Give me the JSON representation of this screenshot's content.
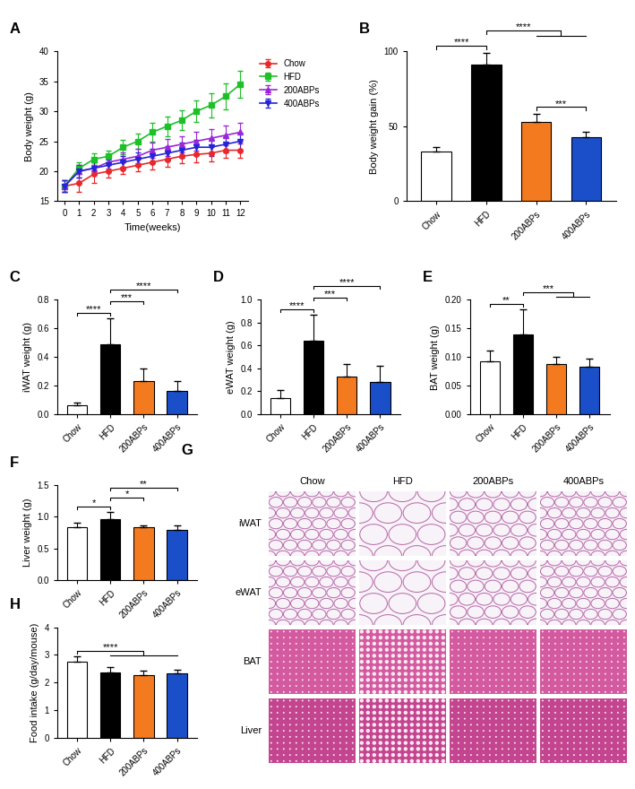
{
  "chart_data": [
    {
      "type": "line",
      "panel": "A",
      "x_label": "Time(weeks)",
      "y_label": "Body weight (g)",
      "x": [
        0,
        1,
        2,
        3,
        4,
        5,
        6,
        7,
        8,
        9,
        10,
        11,
        12
      ],
      "xlim": [
        -0.5,
        12.5
      ],
      "xticks": [
        0,
        1,
        2,
        3,
        4,
        5,
        6,
        7,
        8,
        9,
        10,
        11,
        12
      ],
      "ylim": [
        15,
        40
      ],
      "yticks": [
        15,
        20,
        25,
        30,
        35,
        40
      ],
      "legend": "upper left",
      "series": [
        {
          "name": "Chow",
          "color": "#e8282a",
          "marker": "circle",
          "values": [
            17.5,
            18,
            19.5,
            20,
            20.5,
            21,
            21.5,
            22,
            22.5,
            22.8,
            23,
            23.5,
            23.5
          ],
          "errors": [
            1,
            1.5,
            1.5,
            1,
            1,
            1,
            1.2,
            1.2,
            1.2,
            1.3,
            1.3,
            1.2,
            1.2
          ]
        },
        {
          "name": "HFD",
          "color": "#1fbf2a",
          "marker": "square",
          "values": [
            17.5,
            20.5,
            22,
            22.5,
            24,
            25,
            26.5,
            27.5,
            28.5,
            30,
            31,
            32.5,
            34.5
          ],
          "errors": [
            1,
            1,
            1,
            1,
            1.2,
            1.3,
            1.5,
            1.6,
            1.7,
            1.8,
            2,
            2.2,
            2.3
          ]
        },
        {
          "name": "200ABPs",
          "color": "#9b27d8",
          "marker": "triangle_up",
          "values": [
            17.5,
            20,
            20.5,
            21.5,
            22,
            22.5,
            23.5,
            24,
            24.5,
            25,
            25.5,
            26,
            26.5
          ],
          "errors": [
            1,
            1,
            1,
            1,
            1.2,
            1.2,
            1.3,
            1.4,
            1.4,
            1.5,
            1.5,
            1.6,
            1.6
          ]
        },
        {
          "name": "400ABPs",
          "color": "#2424d8",
          "marker": "triangle_down",
          "values": [
            17.5,
            20,
            20.5,
            21,
            21.5,
            22,
            22.5,
            23,
            23.5,
            24,
            24,
            24.5,
            25
          ],
          "errors": [
            1,
            1,
            1,
            1,
            1,
            1.1,
            1.2,
            1.2,
            1.3,
            1.3,
            1.4,
            1.4,
            1.4
          ]
        }
      ]
    },
    {
      "type": "bar",
      "panel": "B",
      "y_label": "Body weight gain (%)",
      "categories": [
        "Chow",
        "HFD",
        "200ABPs",
        "400ABPs"
      ],
      "values": [
        33,
        91,
        53,
        43
      ],
      "errors": [
        3,
        8,
        5,
        3
      ],
      "colors": [
        "#ffffff",
        "#000000",
        "#f47a20",
        "#1a4fc9"
      ],
      "ylim": [
        0,
        100
      ],
      "yticks": [
        0,
        50,
        100
      ],
      "annotations": [
        {
          "from": "200ABPs",
          "to": [
            "400ABPs"
          ],
          "text": "***"
        },
        {
          "from": "Chow",
          "to": [
            "HFD"
          ],
          "text": "****"
        },
        {
          "from": "HFD",
          "to": [
            "200ABPs",
            "400ABPs"
          ],
          "text": "****"
        }
      ]
    },
    {
      "type": "bar",
      "panel": "C",
      "y_label": "iWAT weight (g)",
      "categories": [
        "Chow",
        "HFD",
        "200ABPs",
        "400ABPs"
      ],
      "values": [
        0.06,
        0.49,
        0.23,
        0.16
      ],
      "errors": [
        0.02,
        0.18,
        0.09,
        0.07
      ],
      "colors": [
        "#ffffff",
        "#000000",
        "#f47a20",
        "#1a4fc9"
      ],
      "ylim": [
        0,
        0.8
      ],
      "yticks": [
        {
          "value": 0,
          "label": "0.0"
        },
        0.2,
        0.4,
        0.6,
        0.8
      ],
      "annotations": [
        {
          "from": "Chow",
          "to": [
            "HFD"
          ],
          "text": "****"
        },
        {
          "from": "HFD",
          "to": [
            "200ABPs"
          ],
          "text": "***"
        },
        {
          "from": "HFD",
          "to": [
            "400ABPs"
          ],
          "text": "****"
        }
      ]
    },
    {
      "type": "bar",
      "panel": "D",
      "y_label": "eWAT weight (g)",
      "categories": [
        "Chow",
        "HFD",
        "200ABPs",
        "400ABPs"
      ],
      "values": [
        0.14,
        0.64,
        0.33,
        0.28
      ],
      "errors": [
        0.07,
        0.23,
        0.11,
        0.14
      ],
      "colors": [
        "#ffffff",
        "#000000",
        "#f47a20",
        "#1a4fc9"
      ],
      "ylim": [
        0,
        1.0
      ],
      "yticks": [
        {
          "value": 0,
          "label": "0.0"
        },
        0.2,
        0.4,
        0.6,
        0.8,
        {
          "value": 1,
          "label": "1.0"
        }
      ],
      "annotations": [
        {
          "from": "Chow",
          "to": [
            "HFD"
          ],
          "text": "****"
        },
        {
          "from": "HFD",
          "to": [
            "200ABPs"
          ],
          "text": "***"
        },
        {
          "from": "HFD",
          "to": [
            "400ABPs"
          ],
          "text": "****"
        }
      ]
    },
    {
      "type": "bar",
      "panel": "E",
      "y_label": "BAT weight (g)",
      "categories": [
        "Chow",
        "HFD",
        "200ABPs",
        "400ABPs"
      ],
      "values": [
        0.093,
        0.14,
        0.087,
        0.083
      ],
      "errors": [
        0.018,
        0.043,
        0.013,
        0.014
      ],
      "colors": [
        "#ffffff",
        "#000000",
        "#f47a20",
        "#1a4fc9"
      ],
      "ylim": [
        0,
        0.2
      ],
      "yticks": [
        {
          "value": 0,
          "label": "0.00"
        },
        0.05,
        {
          "value": 0.1,
          "label": "0.10"
        },
        0.15,
        {
          "value": 0.2,
          "label": "0.20"
        }
      ],
      "annotations": [
        {
          "from": "Chow",
          "to": [
            "HFD"
          ],
          "text": "**"
        },
        {
          "from": "HFD",
          "to": [
            "200ABPs",
            "400ABPs"
          ],
          "text": "***"
        }
      ]
    },
    {
      "type": "bar",
      "panel": "F",
      "y_label": "Liver weight (g)",
      "categories": [
        "Chow",
        "HFD",
        "200ABPs",
        "400ABPs"
      ],
      "values": [
        0.83,
        0.97,
        0.83,
        0.79
      ],
      "errors": [
        0.08,
        0.11,
        0.03,
        0.07
      ],
      "colors": [
        "#ffffff",
        "#000000",
        "#f47a20",
        "#1a4fc9"
      ],
      "ylim": [
        0,
        1.5
      ],
      "yticks": [
        {
          "value": 0,
          "label": "0.0"
        },
        0.5,
        {
          "value": 1,
          "label": "1.0"
        },
        1.5
      ],
      "annotations": [
        {
          "from": "Chow",
          "to": [
            "HFD"
          ],
          "text": "*"
        },
        {
          "from": "HFD",
          "to": [
            "200ABPs"
          ],
          "text": "*"
        },
        {
          "from": "HFD",
          "to": [
            "400ABPs"
          ],
          "text": "**"
        }
      ]
    },
    {
      "type": "images",
      "panel": "G",
      "columns": [
        "Chow",
        "HFD",
        "200ABPs",
        "400ABPs"
      ],
      "rows": [
        "iWAT",
        "eWAT",
        "BAT",
        "Liver"
      ]
    },
    {
      "type": "bar",
      "panel": "H",
      "y_label": "Food intake (g/day/mouse)",
      "categories": [
        "Chow",
        "HFD",
        "200ABPs",
        "400ABPs"
      ],
      "values": [
        2.75,
        2.37,
        2.27,
        2.32
      ],
      "errors": [
        0.2,
        0.2,
        0.15,
        0.15
      ],
      "colors": [
        "#ffffff",
        "#000000",
        "#f47a20",
        "#1a4fc9"
      ],
      "ylim": [
        0,
        4
      ],
      "yticks": [
        0,
        1,
        2,
        3,
        4
      ],
      "annotations": [
        {
          "from": "Chow",
          "to": [
            "HFD",
            "200ABPs",
            "400ABPs"
          ],
          "text": "****"
        }
      ]
    }
  ]
}
